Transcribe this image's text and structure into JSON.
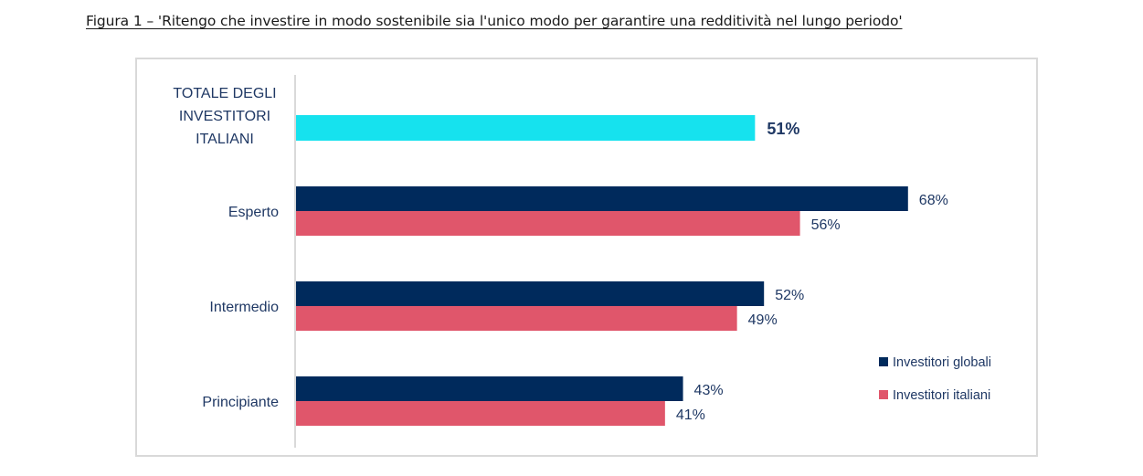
{
  "figure": {
    "title": "Figura 1 – 'Ritengo che investire in modo sostenibile sia l'unico modo per garantire una redditività nel lungo periodo'"
  },
  "chart_data": {
    "type": "bar",
    "orientation": "horizontal",
    "title": "Figura 1 – 'Ritengo che investire in modo sostenibile sia l'unico modo per garantire una redditività nel lungo periodo'",
    "xlabel": "",
    "ylabel": "",
    "xlim": [
      0,
      100
    ],
    "grid": false,
    "unit": "%",
    "total": {
      "label_lines": [
        "TOTALE DEGLI",
        "INVESTITORI",
        "ITALIANI"
      ],
      "value": 51,
      "label": "51%",
      "color": "#16e2ee"
    },
    "categories": [
      "Esperto",
      "Intermedio",
      "Principiante"
    ],
    "series": [
      {
        "name": "Investitori globali",
        "color": "#002a5c",
        "values": [
          68,
          52,
          43
        ],
        "labels": [
          "68%",
          "52%",
          "43%"
        ]
      },
      {
        "name": "Investitori italiani",
        "color": "#e0566b",
        "values": [
          56,
          49,
          41
        ],
        "labels": [
          "56%",
          "49%",
          "41%"
        ]
      }
    ],
    "legend": {
      "position": "bottom-right",
      "entries": [
        "Investitori globali",
        "Investitori italiani"
      ]
    }
  }
}
